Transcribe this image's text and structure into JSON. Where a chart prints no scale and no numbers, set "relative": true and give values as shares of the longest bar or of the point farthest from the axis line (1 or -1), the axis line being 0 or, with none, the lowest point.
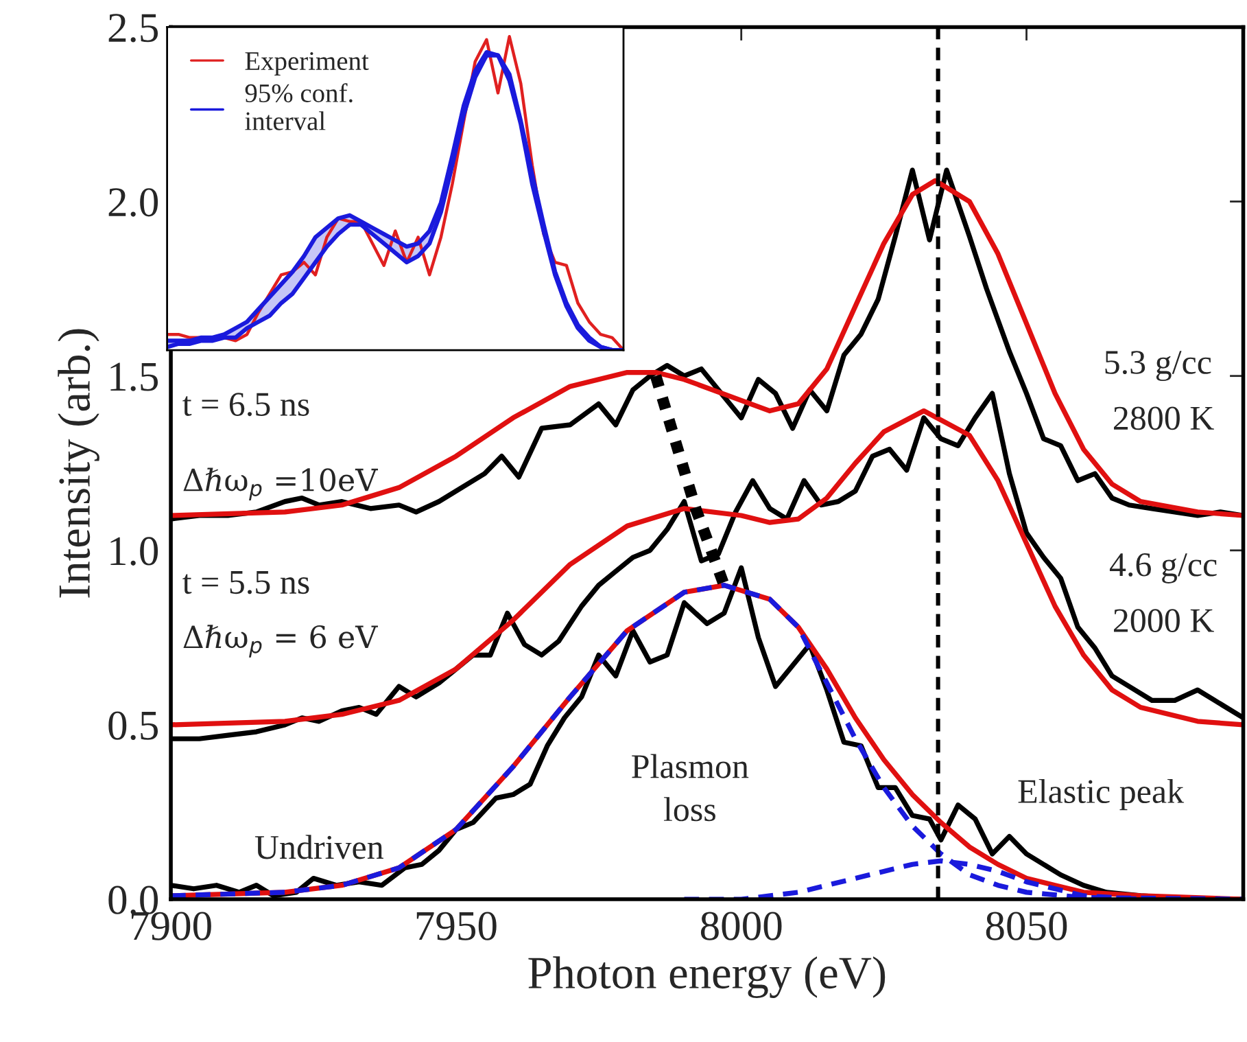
{
  "chart_data": [
    {
      "type": "line",
      "xlabel": "Photon energy (eV)",
      "ylabel": "Intensity (arb.)",
      "xlim": [
        7900,
        8088
      ],
      "ylim": [
        0,
        2.5
      ],
      "xticks": [
        7900,
        7950,
        8000,
        8050
      ],
      "yticks": [
        {
          "value": 0,
          "label": "0.0"
        },
        {
          "value": 0.5,
          "label": "0.5"
        },
        {
          "value": 1,
          "label": "1.0"
        },
        {
          "value": 1.5,
          "label": "1.5"
        },
        {
          "value": 2,
          "label": "2.0"
        },
        {
          "value": 2.5,
          "label": "2.5"
        }
      ],
      "grid": false,
      "legend": false,
      "series": [
        {
          "color": "#000000",
          "line_style": "solid",
          "x": [
            7900,
            7905,
            7910,
            7915,
            7920,
            7923,
            7926,
            7930,
            7935,
            7940,
            7943,
            7947,
            7950,
            7955,
            7958,
            7961,
            7965,
            7970,
            7975,
            7978,
            7981,
            7984,
            7987,
            7990,
            7993,
            7997,
            8000,
            8003,
            8006,
            8009,
            8012,
            8015,
            8018,
            8021,
            8024,
            8027,
            8030,
            8033,
            8036,
            8040,
            8043,
            8047,
            8050,
            8053,
            8056,
            8059,
            8062,
            8065,
            8068,
            8072,
            8076,
            8080,
            8084,
            8088
          ],
          "values": [
            1.09,
            1.1,
            1.1,
            1.11,
            1.14,
            1.15,
            1.13,
            1.14,
            1.12,
            1.13,
            1.11,
            1.14,
            1.17,
            1.22,
            1.27,
            1.21,
            1.35,
            1.36,
            1.42,
            1.36,
            1.46,
            1.5,
            1.53,
            1.5,
            1.52,
            1.44,
            1.38,
            1.49,
            1.45,
            1.35,
            1.46,
            1.4,
            1.56,
            1.62,
            1.72,
            1.9,
            2.09,
            1.89,
            2.09,
            1.9,
            1.75,
            1.57,
            1.45,
            1.32,
            1.3,
            1.2,
            1.22,
            1.15,
            1.13,
            1.12,
            1.11,
            1.1,
            1.11,
            1.1
          ]
        },
        {
          "color": "#000000",
          "line_style": "solid",
          "x": [
            7900,
            7905,
            7910,
            7915,
            7920,
            7923,
            7926,
            7930,
            7933,
            7936,
            7940,
            7943,
            7947,
            7950,
            7953,
            7956,
            7959,
            7962,
            7965,
            7968,
            7972,
            7975,
            7978,
            7981,
            7984,
            7987,
            7990,
            7993,
            7996,
            7999,
            8002,
            8005,
            8008,
            8011,
            8014,
            8017,
            8020,
            8023,
            8026,
            8029,
            8032,
            8035,
            8038,
            8041,
            8044,
            8047,
            8050,
            8053,
            8056,
            8059,
            8062,
            8065,
            8068,
            8072,
            8076,
            8080,
            8084,
            8088
          ],
          "values": [
            0.46,
            0.46,
            0.47,
            0.48,
            0.5,
            0.52,
            0.51,
            0.54,
            0.55,
            0.53,
            0.61,
            0.58,
            0.62,
            0.66,
            0.7,
            0.7,
            0.82,
            0.73,
            0.7,
            0.74,
            0.84,
            0.9,
            0.94,
            0.98,
            1.0,
            1.06,
            1.14,
            0.97,
            0.99,
            1.11,
            1.2,
            1.12,
            1.09,
            1.2,
            1.13,
            1.14,
            1.17,
            1.27,
            1.29,
            1.23,
            1.38,
            1.32,
            1.3,
            1.38,
            1.45,
            1.22,
            1.05,
            0.98,
            0.92,
            0.78,
            0.72,
            0.64,
            0.61,
            0.57,
            0.57,
            0.6,
            0.56,
            0.52
          ]
        },
        {
          "color": "#000000",
          "line_style": "solid",
          "x": [
            7900,
            7904,
            7908,
            7912,
            7915,
            7918,
            7922,
            7925,
            7929,
            7933,
            7937,
            7941,
            7944,
            7947,
            7950,
            7953,
            7957,
            7960,
            7963,
            7966,
            7969,
            7972,
            7975,
            7978,
            7981,
            7984,
            7987,
            7990,
            7994,
            7997,
            8000,
            8003,
            8006,
            8009,
            8012,
            8015,
            8018,
            8021,
            8024,
            8027,
            8030,
            8033,
            8035,
            8038,
            8041,
            8044,
            8047,
            8050,
            8053,
            8056,
            8060,
            8064,
            8070,
            8080,
            8088
          ],
          "values": [
            0.04,
            0.03,
            0.04,
            0.02,
            0.04,
            0.01,
            0.02,
            0.06,
            0.04,
            0.05,
            0.04,
            0.09,
            0.1,
            0.14,
            0.2,
            0.22,
            0.29,
            0.3,
            0.33,
            0.44,
            0.52,
            0.58,
            0.7,
            0.64,
            0.77,
            0.68,
            0.7,
            0.85,
            0.79,
            0.82,
            0.95,
            0.75,
            0.61,
            0.67,
            0.73,
            0.6,
            0.45,
            0.44,
            0.32,
            0.32,
            0.24,
            0.23,
            0.17,
            0.27,
            0.23,
            0.13,
            0.18,
            0.13,
            0.1,
            0.07,
            0.04,
            0.02,
            0.01,
            0.0,
            0.0
          ]
        },
        {
          "color": "#e01010",
          "line_style": "solid",
          "x": [
            7900,
            7920,
            7930,
            7940,
            7950,
            7960,
            7970,
            7980,
            7985,
            7990,
            8000,
            8005,
            8010,
            8015,
            8020,
            8025,
            8030,
            8034,
            8040,
            8045,
            8050,
            8055,
            8060,
            8065,
            8070,
            8080,
            8088
          ],
          "values": [
            1.1,
            1.11,
            1.13,
            1.18,
            1.27,
            1.38,
            1.47,
            1.51,
            1.51,
            1.49,
            1.43,
            1.4,
            1.42,
            1.52,
            1.7,
            1.88,
            2.02,
            2.06,
            2.0,
            1.85,
            1.65,
            1.45,
            1.29,
            1.19,
            1.14,
            1.11,
            1.1
          ]
        },
        {
          "color": "#e01010",
          "line_style": "solid",
          "x": [
            7900,
            7920,
            7930,
            7940,
            7950,
            7960,
            7970,
            7980,
            7990,
            8000,
            8005,
            8010,
            8015,
            8020,
            8025,
            8032,
            8040,
            8045,
            8050,
            8055,
            8060,
            8065,
            8070,
            8080,
            8088
          ],
          "values": [
            0.5,
            0.51,
            0.53,
            0.57,
            0.66,
            0.8,
            0.96,
            1.07,
            1.12,
            1.1,
            1.08,
            1.09,
            1.15,
            1.25,
            1.34,
            1.4,
            1.33,
            1.2,
            1.02,
            0.84,
            0.7,
            0.6,
            0.55,
            0.51,
            0.5
          ]
        },
        {
          "color": "#e01010",
          "line_style": "solid",
          "x": [
            7900,
            7920,
            7930,
            7940,
            7950,
            7960,
            7970,
            7980,
            7990,
            7997,
            8005,
            8010,
            8015,
            8020,
            8025,
            8030,
            8035,
            8040,
            8045,
            8050,
            8055,
            8060,
            8070,
            8088
          ],
          "values": [
            0.01,
            0.02,
            0.04,
            0.09,
            0.2,
            0.38,
            0.58,
            0.77,
            0.88,
            0.9,
            0.86,
            0.78,
            0.66,
            0.52,
            0.4,
            0.3,
            0.22,
            0.15,
            0.1,
            0.06,
            0.04,
            0.02,
            0.01,
            0.0
          ]
        },
        {
          "color": "#1a1adc",
          "line_style": "dashed",
          "x": [
            7900,
            7920,
            7930,
            7940,
            7950,
            7960,
            7970,
            7980,
            7990,
            7997,
            8005,
            8010,
            8015,
            8020,
            8025,
            8030,
            8035,
            8040,
            8045,
            8050,
            8060,
            8088
          ],
          "values": [
            0.01,
            0.02,
            0.04,
            0.09,
            0.2,
            0.38,
            0.58,
            0.77,
            0.88,
            0.9,
            0.86,
            0.78,
            0.62,
            0.46,
            0.32,
            0.21,
            0.13,
            0.07,
            0.04,
            0.02,
            0.005,
            0.0
          ]
        },
        {
          "color": "#1a1adc",
          "line_style": "dashed",
          "x": [
            7990,
            8000,
            8010,
            8020,
            8030,
            8035,
            8040,
            8045,
            8050,
            8055,
            8060,
            8070
          ],
          "values": [
            0.0,
            0.0,
            0.02,
            0.06,
            0.1,
            0.11,
            0.1,
            0.08,
            0.05,
            0.03,
            0.01,
            0.0
          ]
        },
        {
          "color": "#000000",
          "line_style": "dotted",
          "x": [
            7985,
            7992,
            7997
          ],
          "values": [
            1.5,
            1.12,
            0.9
          ]
        }
      ],
      "ref_lines": [
        {
          "axis": "x",
          "value": 8034.5,
          "color": "#000000",
          "line_style": "dashed"
        }
      ],
      "annotations": [
        "t = 6.5 ns",
        "Δℏω$_{p}$ =10eV",
        "t = 5.5 ns",
        "Δℏω$_{p}$ = 6 eV",
        "5.3 g/cc",
        "2800 K",
        "4.6 g/cc",
        "2000 K",
        "Plasmon\nloss",
        "Elastic peak",
        "Undriven"
      ]
    },
    {
      "type": "line",
      "relative": true,
      "legend": "top left",
      "categories": [
        null,
        null,
        null,
        null,
        null,
        null,
        null,
        null,
        null,
        null,
        null,
        null,
        null,
        null,
        null,
        null,
        null,
        null,
        null,
        null,
        null,
        null,
        null,
        null,
        null,
        null,
        null,
        null,
        null,
        null,
        null,
        null,
        null,
        null,
        null,
        null,
        null,
        null,
        null,
        null,
        null
      ],
      "series": [
        {
          "name": "Experiment",
          "color": "#e02020",
          "values": [
            0.05,
            0.05,
            0.04,
            0.04,
            0.03,
            0.04,
            0.03,
            0.05,
            0.12,
            0.18,
            0.24,
            0.25,
            0.28,
            0.24,
            0.36,
            0.42,
            0.41,
            0.41,
            0.34,
            0.27,
            0.38,
            0.28,
            0.36,
            0.24,
            0.36,
            0.53,
            0.73,
            0.92,
            0.99,
            0.82,
            1.0,
            0.85,
            0.59,
            0.37,
            0.28,
            0.27,
            0.15,
            0.09,
            0.05,
            0.04,
            0.0
          ]
        },
        {
          "name": "95% conf.\ninterval",
          "color": "#1a1adc",
          "values": [
            0.03,
            0.03,
            0.03,
            0.04,
            0.04,
            0.05,
            0.07,
            0.09,
            0.13,
            0.17,
            0.21,
            0.25,
            0.3,
            0.36,
            0.39,
            0.42,
            0.43,
            0.41,
            0.39,
            0.37,
            0.35,
            0.33,
            0.34,
            0.38,
            0.47,
            0.62,
            0.78,
            0.89,
            0.95,
            0.94,
            0.88,
            0.73,
            0.56,
            0.4,
            0.25,
            0.15,
            0.08,
            0.04,
            0.01,
            0.0,
            0.0
          ],
          "lower": [
            0.01,
            0.02,
            0.02,
            0.03,
            0.03,
            0.04,
            0.04,
            0.07,
            0.09,
            0.11,
            0.15,
            0.18,
            0.23,
            0.28,
            0.33,
            0.37,
            0.4,
            0.4,
            0.37,
            0.34,
            0.31,
            0.28,
            0.3,
            0.34,
            0.44,
            0.59,
            0.75,
            0.87,
            0.94,
            0.94,
            0.86,
            0.72,
            0.53,
            0.38,
            0.24,
            0.14,
            0.07,
            0.03,
            0.01,
            0.0,
            0.0
          ],
          "upper": [
            0.03,
            0.03,
            0.03,
            0.04,
            0.04,
            0.05,
            0.07,
            0.09,
            0.13,
            0.17,
            0.21,
            0.25,
            0.3,
            0.36,
            0.39,
            0.42,
            0.43,
            0.41,
            0.39,
            0.37,
            0.35,
            0.33,
            0.34,
            0.38,
            0.47,
            0.62,
            0.78,
            0.89,
            0.95,
            0.94,
            0.88,
            0.73,
            0.56,
            0.4,
            0.25,
            0.15,
            0.08,
            0.04,
            0.01,
            0.0,
            0.0
          ]
        },
        {
          "color": "#1a1adc",
          "values": [
            0.01,
            0.02,
            0.02,
            0.03,
            0.03,
            0.04,
            0.04,
            0.07,
            0.09,
            0.11,
            0.15,
            0.18,
            0.23,
            0.28,
            0.33,
            0.37,
            0.4,
            0.4,
            0.37,
            0.34,
            0.31,
            0.28,
            0.3,
            0.34,
            0.44,
            0.59,
            0.75,
            0.87,
            0.94,
            0.94,
            0.86,
            0.72,
            0.53,
            0.38,
            0.24,
            0.14,
            0.07,
            0.03,
            0.01,
            0.0,
            0.0
          ]
        }
      ]
    }
  ]
}
